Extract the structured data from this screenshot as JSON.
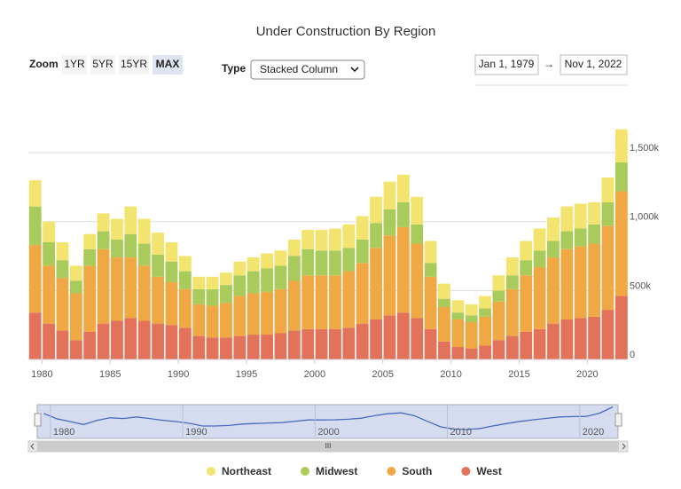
{
  "ui": {
    "zoom_label": "Zoom",
    "zoom_buttons": [
      "1YR",
      "5YR",
      "15YR",
      "MAX"
    ],
    "active_zoom": 3,
    "type_label": "Type",
    "type_select": "Stacked Column",
    "date_from": "Jan 1, 1979",
    "date_separator": "→",
    "date_to": "Nov 1, 2022",
    "navigator_labels": [
      "1980",
      "1990",
      "2000",
      "2010",
      "2020"
    ],
    "scrollbar_grip": "III"
  },
  "chart_data": {
    "type": "stacked_bar",
    "title": "Under Construction By Region",
    "x": [
      1979,
      1980,
      1981,
      1982,
      1983,
      1984,
      1985,
      1986,
      1987,
      1988,
      1989,
      1990,
      1991,
      1992,
      1993,
      1994,
      1995,
      1996,
      1997,
      1998,
      1999,
      2000,
      2001,
      2002,
      2003,
      2004,
      2005,
      2006,
      2007,
      2008,
      2009,
      2010,
      2011,
      2012,
      2013,
      2014,
      2015,
      2016,
      2017,
      2018,
      2019,
      2020,
      2021,
      2022
    ],
    "series": [
      {
        "name": "Northeast",
        "color": "#f3e46f",
        "values": [
          190000,
          150000,
          130000,
          110000,
          110000,
          130000,
          150000,
          200000,
          180000,
          160000,
          140000,
          110000,
          90000,
          90000,
          90000,
          100000,
          100000,
          110000,
          110000,
          120000,
          140000,
          150000,
          160000,
          170000,
          170000,
          190000,
          200000,
          200000,
          200000,
          160000,
          110000,
          90000,
          80000,
          90000,
          110000,
          130000,
          140000,
          160000,
          170000,
          180000,
          180000,
          160000,
          180000,
          240000
        ]
      },
      {
        "name": "Midwest",
        "color": "#a9cb5c",
        "values": [
          280000,
          170000,
          130000,
          90000,
          120000,
          130000,
          130000,
          170000,
          160000,
          160000,
          150000,
          130000,
          110000,
          120000,
          130000,
          150000,
          160000,
          170000,
          170000,
          180000,
          190000,
          180000,
          180000,
          170000,
          170000,
          180000,
          190000,
          180000,
          140000,
          100000,
          60000,
          50000,
          50000,
          60000,
          80000,
          100000,
          110000,
          120000,
          120000,
          130000,
          130000,
          140000,
          170000,
          210000
        ]
      },
      {
        "name": "South",
        "color": "#f0a845",
        "values": [
          490000,
          420000,
          380000,
          340000,
          480000,
          540000,
          460000,
          440000,
          400000,
          340000,
          310000,
          280000,
          230000,
          230000,
          250000,
          290000,
          300000,
          310000,
          320000,
          360000,
          390000,
          390000,
          390000,
          410000,
          440000,
          520000,
          580000,
          620000,
          540000,
          380000,
          250000,
          200000,
          190000,
          210000,
          280000,
          340000,
          410000,
          450000,
          480000,
          510000,
          520000,
          530000,
          610000,
          760000
        ]
      },
      {
        "name": "West",
        "color": "#e2735a",
        "values": [
          340000,
          260000,
          210000,
          140000,
          200000,
          260000,
          280000,
          300000,
          280000,
          260000,
          250000,
          230000,
          170000,
          160000,
          160000,
          170000,
          180000,
          180000,
          190000,
          210000,
          220000,
          220000,
          220000,
          230000,
          260000,
          290000,
          320000,
          340000,
          300000,
          220000,
          130000,
          90000,
          80000,
          100000,
          140000,
          170000,
          200000,
          220000,
          260000,
          290000,
          300000,
          310000,
          360000,
          460000
        ]
      }
    ],
    "xlim": [
      1979,
      2022.9
    ],
    "xticks": [
      1980,
      1985,
      1990,
      1995,
      2000,
      2005,
      2010,
      2015,
      2020
    ],
    "ylim": [
      0,
      1700000
    ],
    "yticks": [
      0,
      {
        "value": 500000,
        "label": "500k"
      },
      {
        "value": 1000000,
        "label": "1,000k"
      },
      {
        "value": 1500000,
        "label": "1,500k"
      }
    ],
    "grid": true
  }
}
